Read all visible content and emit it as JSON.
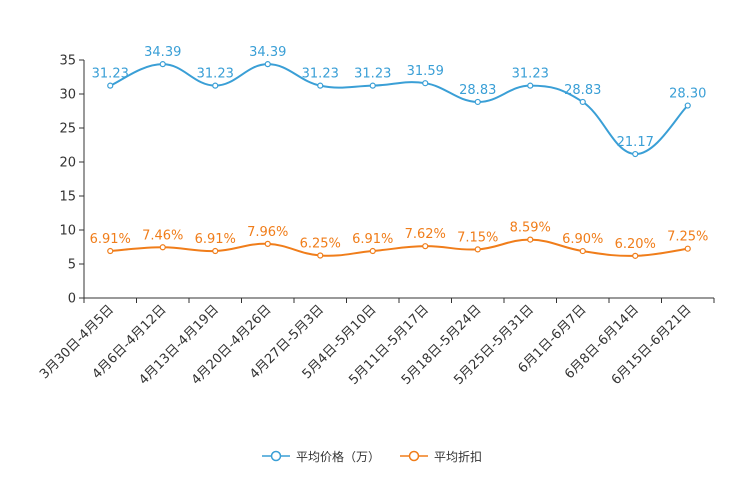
{
  "chart_data": {
    "type": "line",
    "categories": [
      "3月30日-4月5日",
      "4月6日-4月12日",
      "4月13日-4月19日",
      "4月20日-4月26日",
      "4月27日-5月3日",
      "5月4日-5月10日",
      "5月11日-5月17日",
      "5月18日-5月24日",
      "5月25日-5月31日",
      "6月1日-6月7日",
      "6月8日-6月14日",
      "6月15日-6月21日"
    ],
    "series": [
      {
        "name": "平均价格（万）",
        "color": "#3a9fd6",
        "values": [
          31.23,
          34.39,
          31.23,
          34.39,
          31.23,
          31.23,
          31.59,
          28.83,
          31.23,
          28.83,
          21.17,
          28.3
        ],
        "labels": [
          "31.23",
          "34.39",
          "31.23",
          "34.39",
          "31.23",
          "31.23",
          "31.59",
          "28.83",
          "31.23",
          "28.83",
          "21.17",
          "28.30"
        ]
      },
      {
        "name": "平均折扣",
        "color": "#f07d1a",
        "values": [
          6.91,
          7.46,
          6.91,
          7.96,
          6.25,
          6.91,
          7.62,
          7.15,
          8.59,
          6.9,
          6.2,
          7.25
        ],
        "labels": [
          "6.91%",
          "7.46%",
          "6.91%",
          "7.96%",
          "6.25%",
          "6.91%",
          "7.62%",
          "7.15%",
          "8.59%",
          "6.90%",
          "6.20%",
          "7.25%"
        ]
      }
    ],
    "yticks": [
      0,
      5,
      10,
      15,
      20,
      25,
      30,
      35
    ],
    "ylim": [
      0,
      35
    ],
    "title": "",
    "xlabel": "",
    "ylabel": "",
    "legend_position": "bottom-center",
    "grid": false
  }
}
